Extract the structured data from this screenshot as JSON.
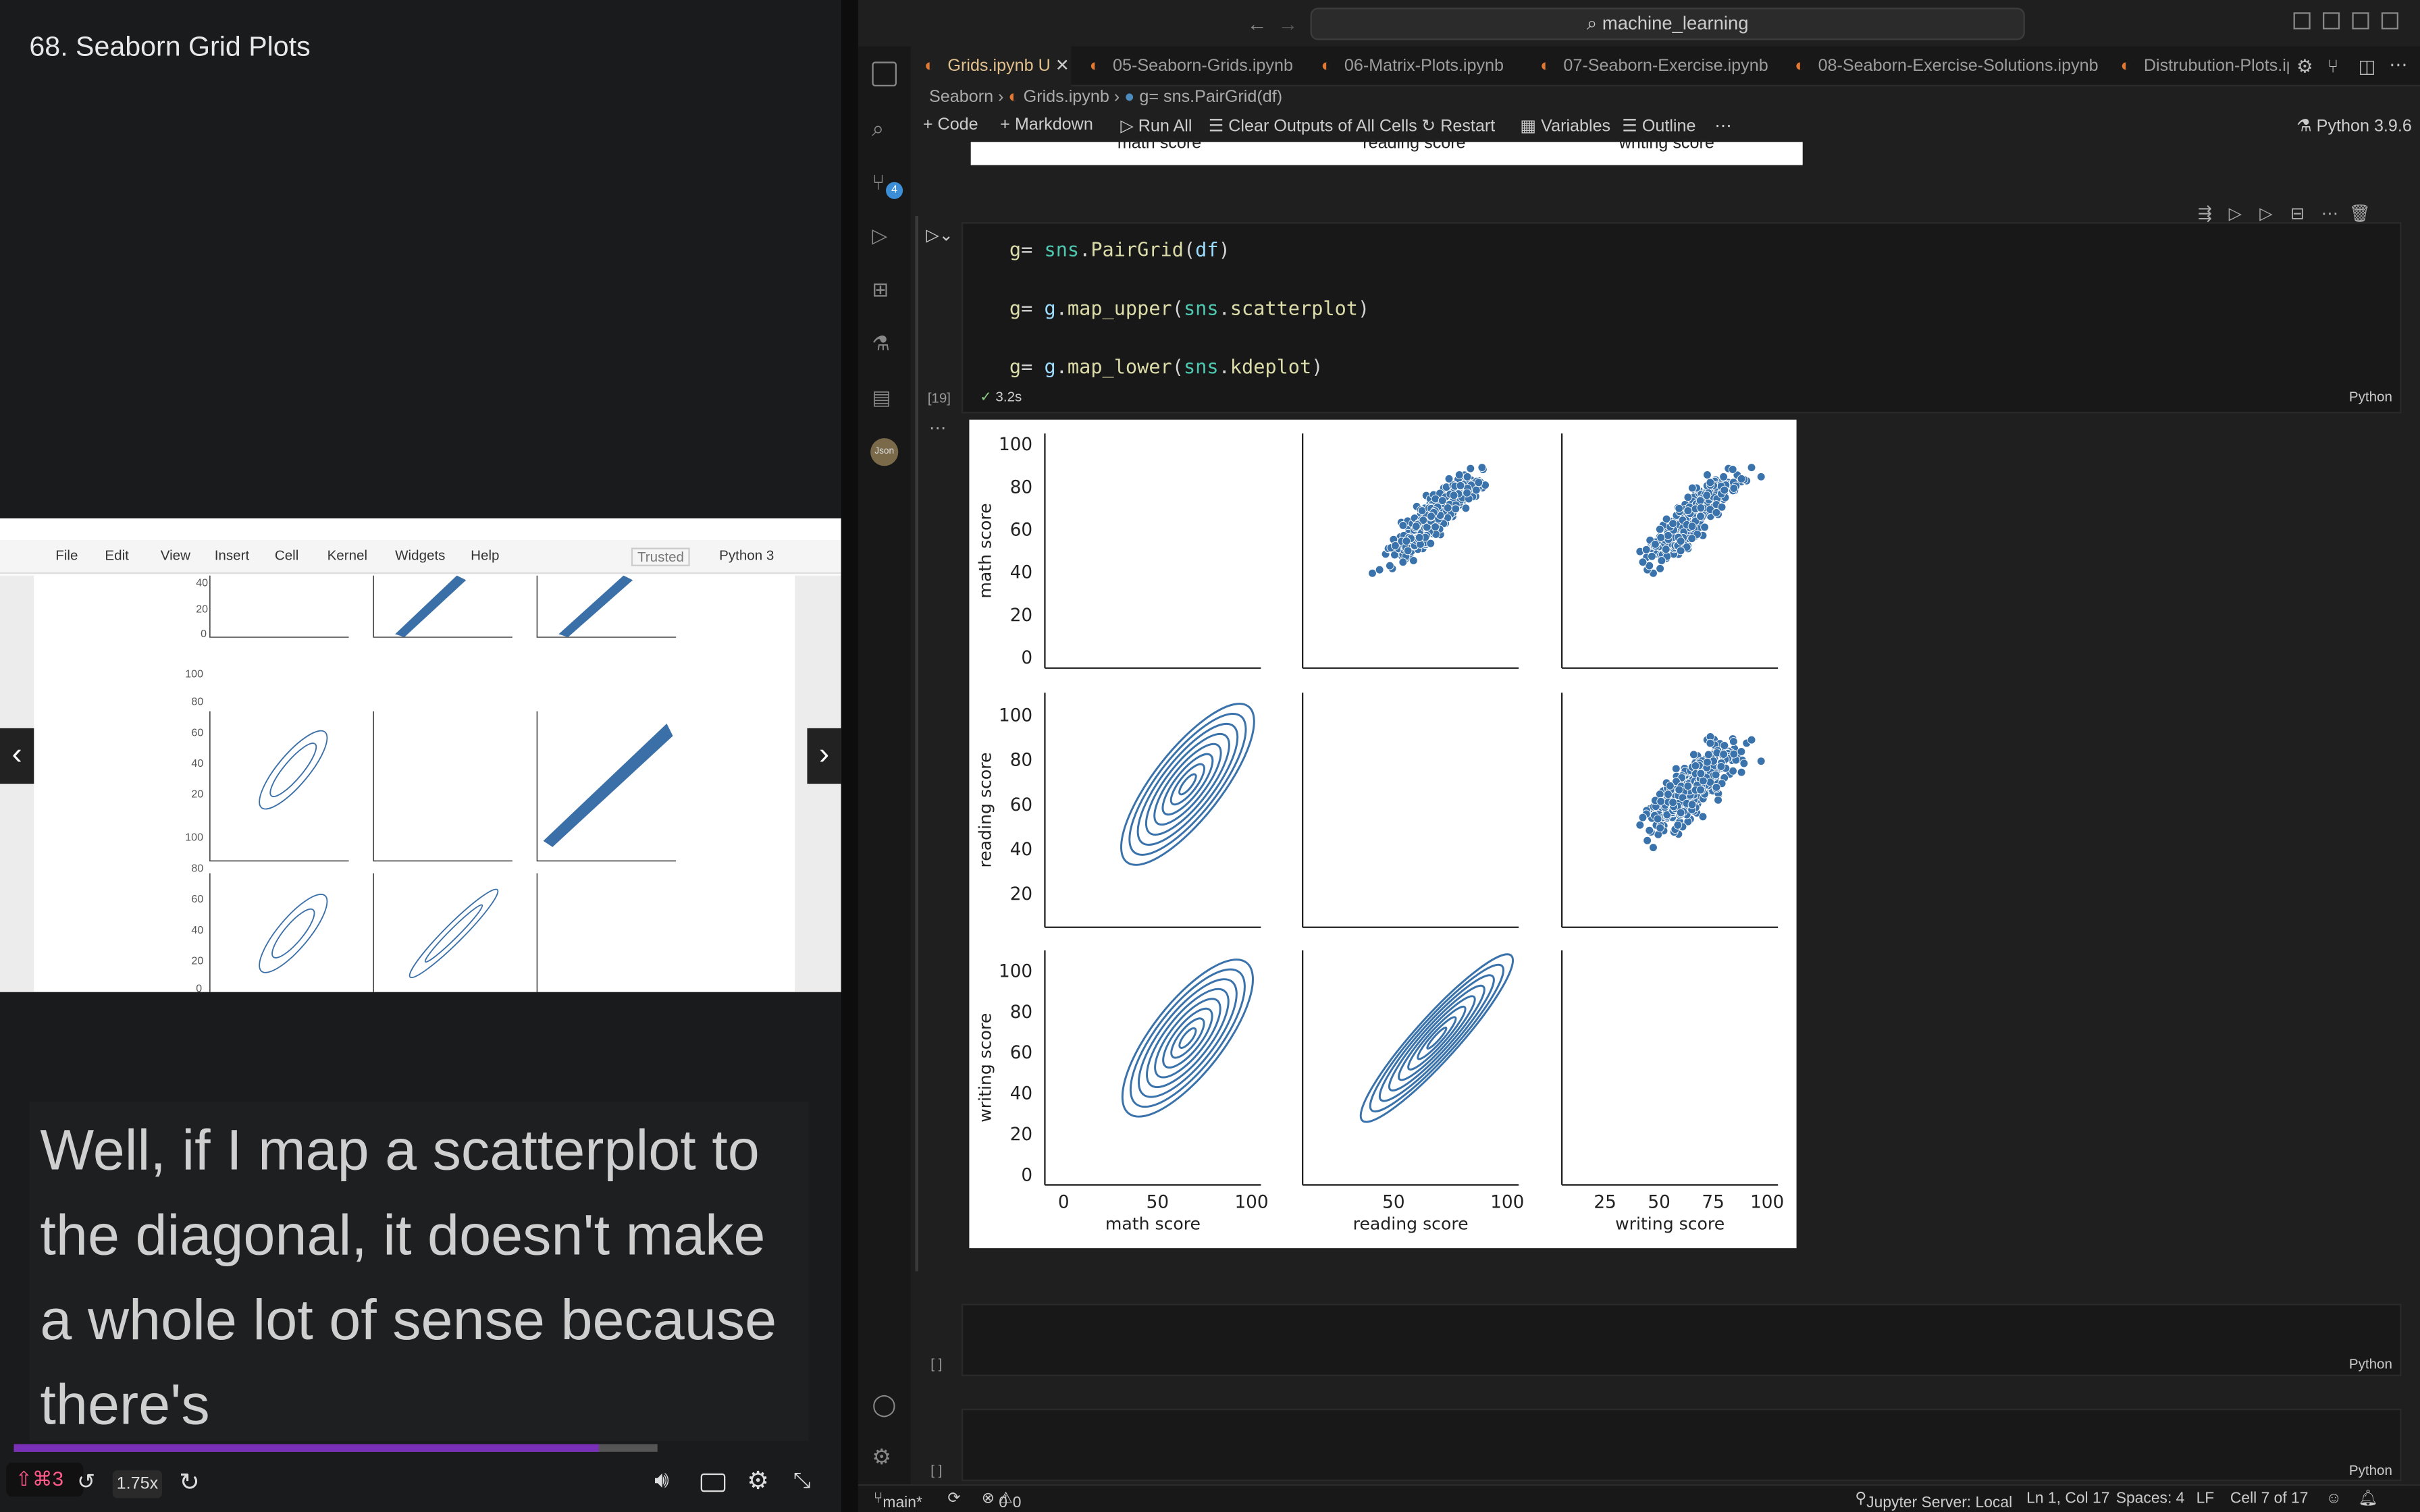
{
  "left": {
    "lesson_title": "68. Seaborn Grid Plots",
    "caption": "Well, if I map a scatterplot to the diagonal, it doesn't make a whole lot of sense because there's",
    "speed": "1.75x",
    "shortcut": "⇧⌘3",
    "thumb": {
      "menu": [
        "File",
        "Edit",
        "View",
        "Insert",
        "Cell",
        "Kernel",
        "Widgets",
        "Help"
      ],
      "trusted": "Trusted",
      "kernel": "Python 3"
    },
    "progress_fraction": 0.91
  },
  "titlebar": {
    "search": "machine_learning"
  },
  "tabs": [
    {
      "label": "Grids.ipynb",
      "badge": "U"
    },
    {
      "label": "05-Seaborn-Grids.ipynb"
    },
    {
      "label": "06-Matrix-Plots.ipynb"
    },
    {
      "label": "07-Seaborn-Exercise.ipynb"
    },
    {
      "label": "08-Seaborn-Exercise-Solutions.ipynb"
    },
    {
      "label": "Distrubution-Plots.ipy"
    }
  ],
  "breadcrumb": {
    "root": "Seaborn",
    "file": "Grids.ipynb",
    "symbol": "g= sns.PairGrid(df)"
  },
  "toolbar": {
    "code": "Code",
    "markdown": "Markdown",
    "run_all": "Run All",
    "clear": "Clear Outputs of All Cells",
    "restart": "Restart",
    "variables": "Variables",
    "outline": "Outline",
    "kernel": "Python 3.9.6"
  },
  "prev_output": {
    "cols": [
      "math score",
      "reading score",
      "writing score"
    ]
  },
  "cell": {
    "lines": [
      [
        "g",
        "=",
        "sns",
        "PairGrid",
        "df"
      ],
      [
        "g",
        "=",
        "g",
        "map_upper",
        "sns",
        "scatterplot"
      ],
      [
        "g",
        "=",
        "g",
        "map_lower",
        "sns",
        "kdeplot"
      ]
    ],
    "exec_count": "[19]",
    "duration": "3.2s",
    "lang": "Python"
  },
  "chart_data": {
    "type": "scatter",
    "variables": [
      "math score",
      "reading score",
      "writing score"
    ],
    "upper": "scatterplot",
    "lower": "kdeplot",
    "diagonal": "empty",
    "axes": {
      "math score": {
        "ticks": [
          0,
          20,
          40,
          60,
          80,
          100
        ]
      },
      "reading score": {
        "ticks": [
          20,
          40,
          60,
          80,
          100
        ],
        "xticks": [
          50,
          100
        ]
      },
      "writing score": {
        "ticks": [
          0,
          20,
          40,
          60,
          80,
          100
        ],
        "xticks": [
          25,
          50,
          75,
          100
        ]
      }
    },
    "xticklabels": {
      "math score": [
        "0",
        "50",
        "100"
      ],
      "reading score": [
        "50",
        "100"
      ],
      "writing score": [
        "25",
        "50",
        "75",
        "100"
      ]
    }
  },
  "empty_cells": [
    {
      "exec": "[ ]",
      "lang": "Python"
    },
    {
      "exec": "[ ]",
      "lang": "Python"
    }
  ],
  "status": {
    "branch": "main*",
    "problems": "0",
    "warnings": "0",
    "server": "Jupyter Server: Local",
    "position": "Ln 1, Col 17",
    "spaces": "Spaces: 4",
    "eol": "LF",
    "cell": "Cell 7 of 17"
  }
}
